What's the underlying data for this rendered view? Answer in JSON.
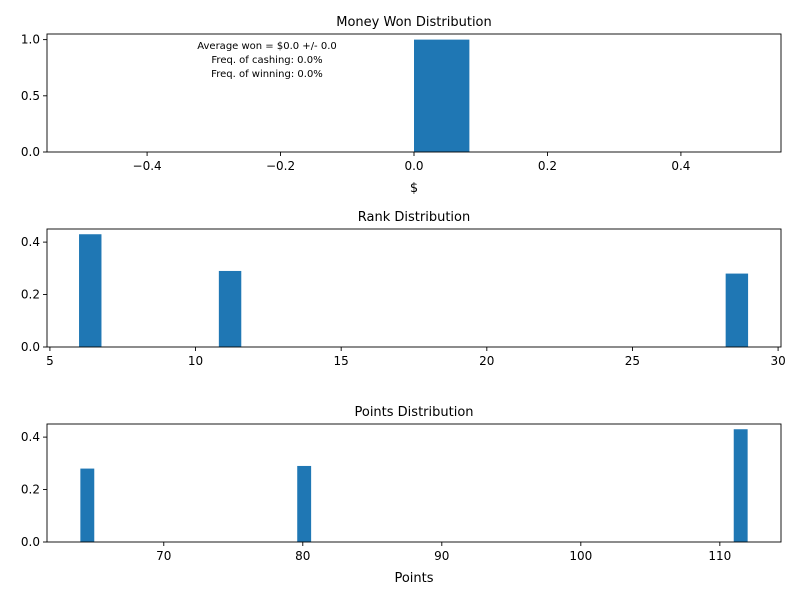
{
  "chart_data": [
    {
      "type": "bar",
      "title": "Money Won Distribution",
      "xlabel": "$",
      "ylabel": "",
      "xlim": [
        -0.55,
        0.55
      ],
      "ylim": [
        0,
        1.05
      ],
      "xticks": [
        -0.4,
        -0.2,
        0.0,
        0.2,
        0.4
      ],
      "xtick_labels": [
        "−0.4",
        "−0.2",
        "0.0",
        "0.2",
        "0.4"
      ],
      "yticks": [
        0.0,
        0.5,
        1.0
      ],
      "ytick_labels": [
        "0.0",
        "0.5",
        "1.0"
      ],
      "bars": [
        {
          "x0": 0.0,
          "x1": 0.083,
          "value": 1.0
        }
      ],
      "annotations": [
        "Average won = $0.0 +/- 0.0",
        "Freq. of cashing: 0.0%",
        "Freq. of winning: 0.0%"
      ],
      "grid": false,
      "color": "#1f77b4"
    },
    {
      "type": "bar",
      "title": "Rank Distribution",
      "xlabel": "",
      "ylabel": "",
      "xlim": [
        4.9,
        30.1
      ],
      "ylim": [
        0,
        0.45
      ],
      "xticks": [
        5,
        10,
        15,
        20,
        25,
        30
      ],
      "xtick_labels": [
        "5",
        "10",
        "15",
        "20",
        "25",
        "30"
      ],
      "yticks": [
        0.0,
        0.2,
        0.4
      ],
      "ytick_labels": [
        "0.0",
        "0.2",
        "0.4"
      ],
      "bars": [
        {
          "x0": 6.0,
          "x1": 6.77,
          "value": 0.43
        },
        {
          "x0": 10.8,
          "x1": 11.57,
          "value": 0.29
        },
        {
          "x0": 28.2,
          "x1": 28.97,
          "value": 0.28
        }
      ],
      "grid": false,
      "color": "#1f77b4"
    },
    {
      "type": "bar",
      "title": "Points Distribution",
      "xlabel": "Points",
      "ylabel": "",
      "xlim": [
        61.6,
        114.4
      ],
      "ylim": [
        0,
        0.45
      ],
      "xticks": [
        70,
        80,
        90,
        100,
        110
      ],
      "xtick_labels": [
        "70",
        "80",
        "90",
        "100",
        "110"
      ],
      "yticks": [
        0.0,
        0.2,
        0.4
      ],
      "ytick_labels": [
        "0.0",
        "0.2",
        "0.4"
      ],
      "bars": [
        {
          "x0": 64.0,
          "x1": 65.0,
          "value": 0.28
        },
        {
          "x0": 79.6,
          "x1": 80.6,
          "value": 0.29
        },
        {
          "x0": 111.0,
          "x1": 112.0,
          "value": 0.43
        }
      ],
      "grid": false,
      "color": "#1f77b4"
    }
  ]
}
